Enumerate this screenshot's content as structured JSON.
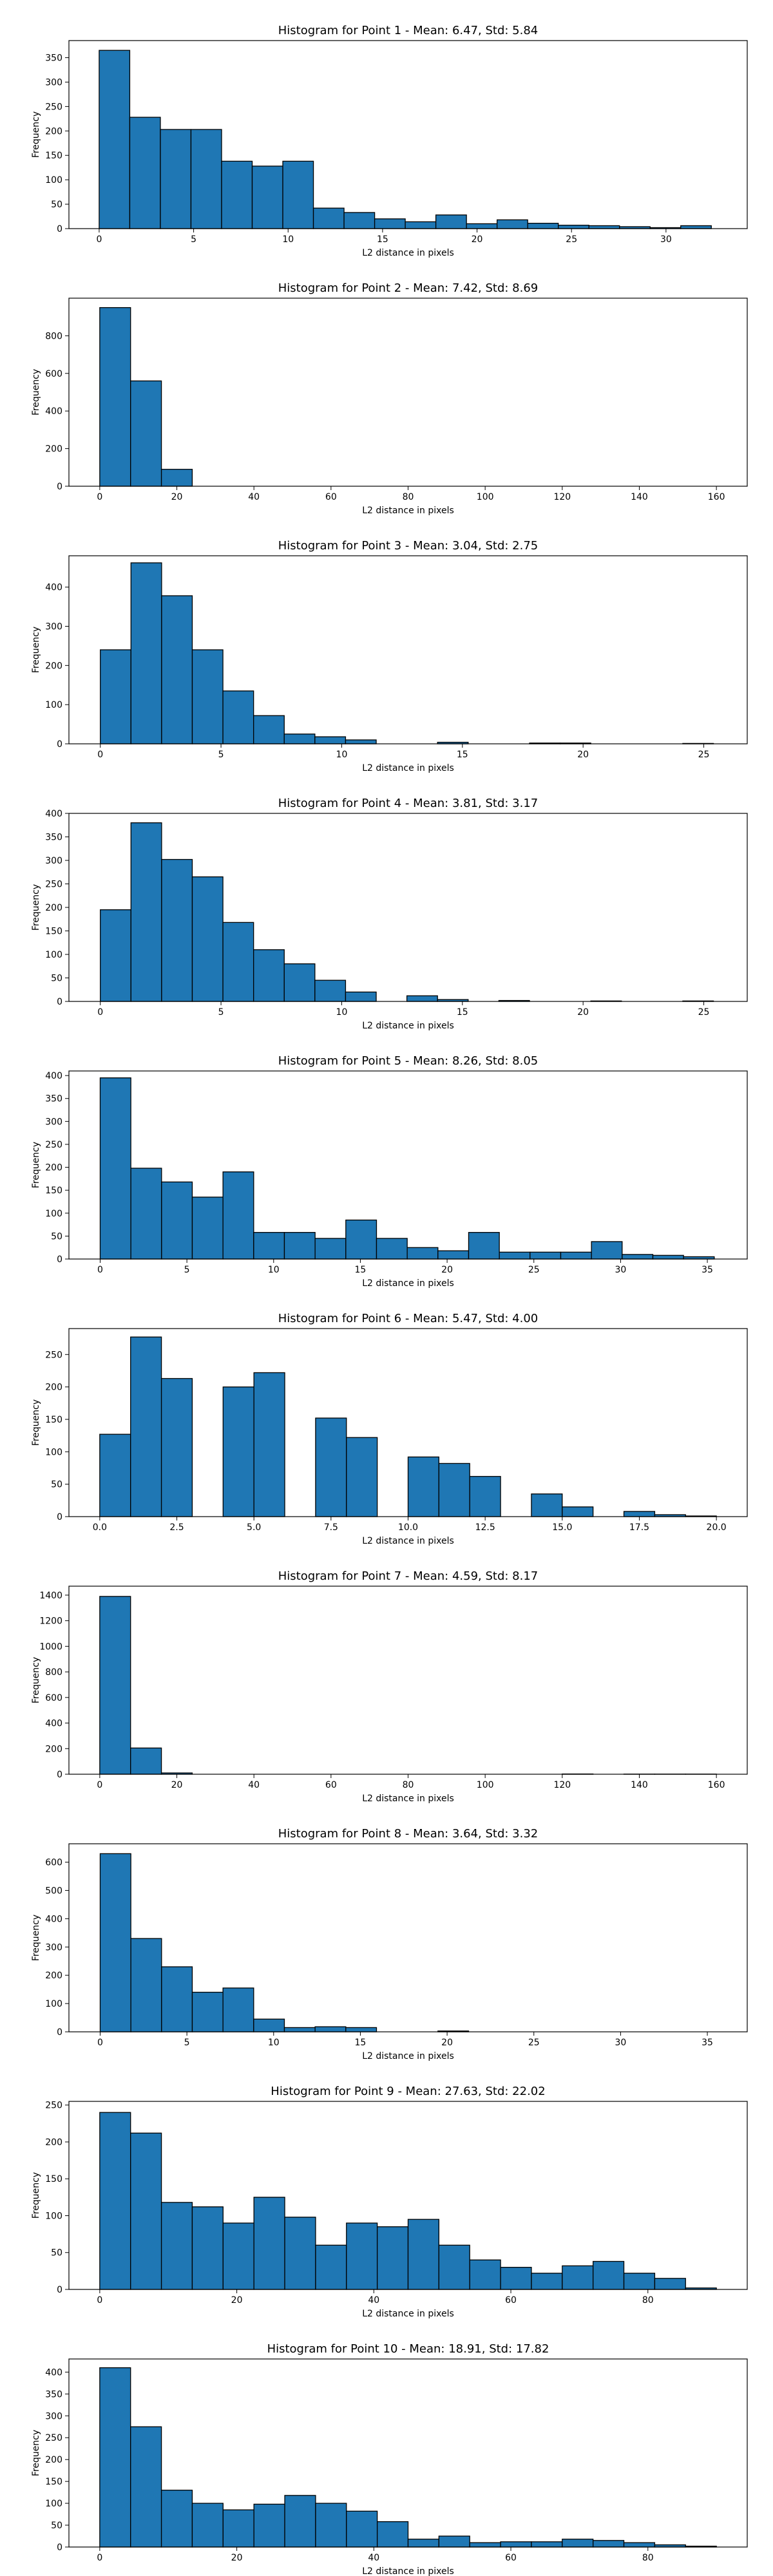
{
  "chart_data": [
    {
      "type": "bar",
      "title": "Histogram for Point 1 - Mean: 6.47, Std: 5.84",
      "xlabel": "L2 distance in pixels",
      "ylabel": "Frequency",
      "xlim": [
        -1.6,
        34.3
      ],
      "ylim": [
        0,
        385
      ],
      "xticks": [
        0,
        5,
        10,
        15,
        20,
        25,
        30
      ],
      "xtick_labels": [
        "0",
        "5",
        "10",
        "15",
        "20",
        "25",
        "30"
      ],
      "yticks": [
        0,
        50,
        100,
        150,
        200,
        250,
        300,
        350
      ],
      "ytick_labels": [
        "0",
        "50",
        "100",
        "150",
        "200",
        "250",
        "300",
        "350"
      ],
      "bin_start": 0,
      "bin_width": 1.62,
      "values": [
        365,
        228,
        203,
        203,
        138,
        128,
        138,
        42,
        33,
        20,
        14,
        28,
        10,
        18,
        11,
        7,
        6,
        4,
        2,
        6
      ],
      "grid": false
    },
    {
      "type": "bar",
      "title": "Histogram for Point 2 - Mean: 7.42, Std: 8.69",
      "xlabel": "L2 distance in pixels",
      "ylabel": "Frequency",
      "xlim": [
        -8,
        168
      ],
      "ylim": [
        0,
        1000
      ],
      "xticks": [
        0,
        20,
        40,
        60,
        80,
        100,
        120,
        140,
        160
      ],
      "xtick_labels": [
        "0",
        "20",
        "40",
        "60",
        "80",
        "100",
        "120",
        "140",
        "160"
      ],
      "yticks": [
        0,
        200,
        400,
        600,
        800
      ],
      "ytick_labels": [
        "0",
        "200",
        "400",
        "600",
        "800"
      ],
      "bin_start": 0,
      "bin_width": 8,
      "values": [
        950,
        560,
        90,
        0,
        0,
        0,
        0,
        0,
        0,
        0,
        0,
        0,
        0,
        0,
        0,
        0,
        0,
        0,
        0,
        0
      ],
      "grid": false
    },
    {
      "type": "bar",
      "title": "Histogram for Point 3 - Mean: 3.04, Std: 2.75",
      "xlabel": "L2 distance in pixels",
      "ylabel": "Frequency",
      "xlim": [
        -1.3,
        26.8
      ],
      "ylim": [
        0,
        480
      ],
      "xticks": [
        0,
        5,
        10,
        15,
        20,
        25
      ],
      "xtick_labels": [
        "0",
        "5",
        "10",
        "15",
        "20",
        "25"
      ],
      "yticks": [
        0,
        100,
        200,
        300,
        400
      ],
      "ytick_labels": [
        "0",
        "100",
        "200",
        "300",
        "400"
      ],
      "bin_start": 0,
      "bin_width": 1.27,
      "values": [
        240,
        462,
        378,
        240,
        135,
        72,
        25,
        18,
        10,
        0,
        0,
        4,
        0,
        0,
        2,
        2,
        0,
        0,
        0,
        1
      ],
      "grid": false
    },
    {
      "type": "bar",
      "title": "Histogram for Point 4 - Mean: 3.81, Std: 3.17",
      "xlabel": "L2 distance in pixels",
      "ylabel": "Frequency",
      "xlim": [
        -1.3,
        26.8
      ],
      "ylim": [
        0,
        400
      ],
      "xticks": [
        0,
        5,
        10,
        15,
        20,
        25
      ],
      "xtick_labels": [
        "0",
        "5",
        "10",
        "15",
        "20",
        "25"
      ],
      "yticks": [
        0,
        50,
        100,
        150,
        200,
        250,
        300,
        350,
        400
      ],
      "ytick_labels": [
        "0",
        "50",
        "100",
        "150",
        "200",
        "250",
        "300",
        "350",
        "400"
      ],
      "bin_start": 0,
      "bin_width": 1.27,
      "values": [
        195,
        380,
        302,
        265,
        168,
        110,
        80,
        45,
        20,
        0,
        12,
        4,
        0,
        2,
        0,
        0,
        1,
        0,
        0,
        1
      ],
      "grid": false
    },
    {
      "type": "bar",
      "title": "Histogram for Point 5 - Mean: 8.26, Std: 8.05",
      "xlabel": "L2 distance in pixels",
      "ylabel": "Frequency",
      "xlim": [
        -1.8,
        37.3
      ],
      "ylim": [
        0,
        410
      ],
      "xticks": [
        0,
        5,
        10,
        15,
        20,
        25,
        30,
        35
      ],
      "xtick_labels": [
        "0",
        "5",
        "10",
        "15",
        "20",
        "25",
        "30",
        "35"
      ],
      "yticks": [
        0,
        50,
        100,
        150,
        200,
        250,
        300,
        350,
        400
      ],
      "ytick_labels": [
        "0",
        "50",
        "100",
        "150",
        "200",
        "250",
        "300",
        "350",
        "400"
      ],
      "bin_start": 0,
      "bin_width": 1.77,
      "values": [
        395,
        198,
        168,
        135,
        190,
        58,
        58,
        45,
        85,
        45,
        25,
        18,
        58,
        15,
        15,
        15,
        38,
        10,
        8,
        5
      ],
      "grid": false
    },
    {
      "type": "bar",
      "title": "Histogram for Point 6 - Mean: 5.47, Std: 4.00",
      "xlabel": "L2 distance in pixels",
      "ylabel": "Frequency",
      "xlim": [
        -1.0,
        21.0
      ],
      "ylim": [
        0,
        290
      ],
      "xticks": [
        0,
        2.5,
        5,
        7.5,
        10,
        12.5,
        15,
        17.5,
        20
      ],
      "xtick_labels": [
        "0.0",
        "2.5",
        "5.0",
        "7.5",
        "10.0",
        "12.5",
        "15.0",
        "17.5",
        "20.0"
      ],
      "yticks": [
        0,
        50,
        100,
        150,
        200,
        250
      ],
      "ytick_labels": [
        "0",
        "50",
        "100",
        "150",
        "200",
        "250"
      ],
      "bin_start": 0,
      "bin_width": 1,
      "values": [
        127,
        277,
        213,
        0,
        200,
        222,
        0,
        152,
        122,
        0,
        92,
        82,
        62,
        0,
        35,
        15,
        0,
        8,
        3,
        1
      ],
      "grid": false
    },
    {
      "type": "bar",
      "title": "Histogram for Point 7 - Mean: 4.59, Std: 8.17",
      "xlabel": "L2 distance in pixels",
      "ylabel": "Frequency",
      "xlim": [
        -8,
        168
      ],
      "ylim": [
        0,
        1470
      ],
      "xticks": [
        0,
        20,
        40,
        60,
        80,
        100,
        120,
        140,
        160
      ],
      "xtick_labels": [
        "0",
        "20",
        "40",
        "60",
        "80",
        "100",
        "120",
        "140",
        "160"
      ],
      "yticks": [
        0,
        200,
        400,
        600,
        800,
        1000,
        1200,
        1400
      ],
      "ytick_labels": [
        "0",
        "200",
        "400",
        "600",
        "800",
        "1000",
        "1200",
        "1400"
      ],
      "bin_start": 0,
      "bin_width": 8,
      "values": [
        1390,
        205,
        10,
        0,
        0,
        0,
        0,
        0,
        0,
        0,
        0,
        0,
        0,
        0,
        0,
        2,
        0,
        1,
        1,
        1
      ],
      "grid": false
    },
    {
      "type": "bar",
      "title": "Histogram for Point 8 - Mean: 3.64, Std: 3.32",
      "xlabel": "L2 distance in pixels",
      "ylabel": "Frequency",
      "xlim": [
        -1.8,
        37.3
      ],
      "ylim": [
        0,
        665
      ],
      "xticks": [
        0,
        5,
        10,
        15,
        20,
        25,
        30,
        35
      ],
      "xtick_labels": [
        "0",
        "5",
        "10",
        "15",
        "20",
        "25",
        "30",
        "35"
      ],
      "yticks": [
        0,
        100,
        200,
        300,
        400,
        500,
        600
      ],
      "ytick_labels": [
        "0",
        "100",
        "200",
        "300",
        "400",
        "500",
        "600"
      ],
      "bin_start": 0,
      "bin_width": 1.77,
      "values": [
        630,
        330,
        230,
        140,
        155,
        45,
        15,
        18,
        15,
        0,
        0,
        3,
        0,
        0,
        0,
        0,
        0,
        0,
        0,
        0
      ],
      "grid": false
    },
    {
      "type": "bar",
      "title": "Histogram for Point 9 - Mean: 27.63, Std: 22.02",
      "xlabel": "L2 distance in pixels",
      "ylabel": "Frequency",
      "xlim": [
        -4.5,
        94.5
      ],
      "ylim": [
        0,
        255
      ],
      "xticks": [
        0,
        20,
        40,
        60,
        80
      ],
      "xtick_labels": [
        "0",
        "20",
        "40",
        "60",
        "80"
      ],
      "yticks": [
        0,
        50,
        100,
        150,
        200,
        250
      ],
      "ytick_labels": [
        "0",
        "50",
        "100",
        "150",
        "200",
        "250"
      ],
      "bin_start": 0,
      "bin_width": 4.5,
      "values": [
        240,
        212,
        118,
        112,
        90,
        125,
        98,
        60,
        90,
        85,
        95,
        60,
        40,
        30,
        22,
        32,
        38,
        22,
        15,
        2
      ],
      "grid": false
    },
    {
      "type": "bar",
      "title": "Histogram for Point 10 - Mean: 18.91, Std: 17.82",
      "xlabel": "L2 distance in pixels",
      "ylabel": "Frequency",
      "xlim": [
        -4.5,
        94.5
      ],
      "ylim": [
        0,
        430
      ],
      "xticks": [
        0,
        20,
        40,
        60,
        80
      ],
      "xtick_labels": [
        "0",
        "20",
        "40",
        "60",
        "80"
      ],
      "yticks": [
        0,
        50,
        100,
        150,
        200,
        250,
        300,
        350,
        400
      ],
      "ytick_labels": [
        "0",
        "50",
        "100",
        "150",
        "200",
        "250",
        "300",
        "350",
        "400"
      ],
      "bin_start": 0,
      "bin_width": 4.5,
      "values": [
        410,
        275,
        130,
        100,
        85,
        98,
        118,
        100,
        82,
        58,
        18,
        25,
        10,
        12,
        12,
        18,
        15,
        10,
        5,
        2
      ],
      "grid": false
    }
  ]
}
